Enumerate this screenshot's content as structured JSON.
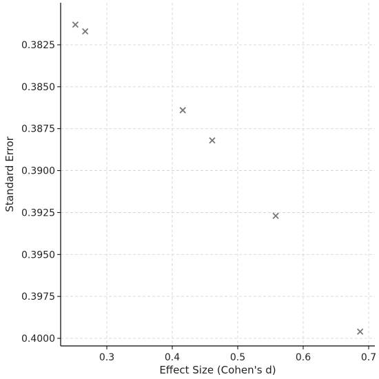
{
  "chart_data": {
    "type": "scatter",
    "title": "",
    "xlabel": "Effect Size (Cohen's d)",
    "ylabel": "Standard Error",
    "y_inverted": true,
    "grid": true,
    "marker": "x",
    "marker_color": "#777777",
    "xlim": [
      0.23,
      0.71
    ],
    "ylim": [
      0.38,
      0.4005
    ],
    "x_ticks": [
      0.3,
      0.4,
      0.5,
      0.6,
      0.7
    ],
    "x_tick_labels": [
      "0.3",
      "0.4",
      "0.5",
      "0.6",
      "0.7"
    ],
    "y_ticks": [
      0.3825,
      0.385,
      0.3875,
      0.39,
      0.3925,
      0.395,
      0.3975,
      0.4
    ],
    "y_tick_labels": [
      "0.3825",
      "0.3850",
      "0.3875",
      "0.3900",
      "0.3925",
      "0.3950",
      "0.3975",
      "0.4000"
    ],
    "points": [
      {
        "x": 0.252,
        "y": 0.3813
      },
      {
        "x": 0.267,
        "y": 0.3817
      },
      {
        "x": 0.416,
        "y": 0.3864
      },
      {
        "x": 0.461,
        "y": 0.3882
      },
      {
        "x": 0.558,
        "y": 0.3927
      },
      {
        "x": 0.687,
        "y": 0.3996
      }
    ]
  }
}
